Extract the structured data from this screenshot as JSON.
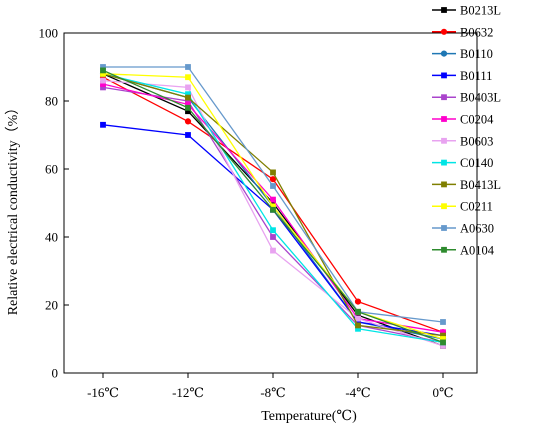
{
  "chart_data": {
    "type": "line",
    "xlabel": "Temperature(℃)",
    "ylabel": "Relative electrical conductivity（%）",
    "categories": [
      "-16℃",
      "-12℃",
      "-8℃",
      "-4℃",
      "0℃"
    ],
    "ylim": [
      0,
      100
    ],
    "yticks": [
      "0",
      "20",
      "40",
      "60",
      "80",
      "100"
    ],
    "grid": false,
    "legend_position": "right",
    "series": [
      {
        "name": "B0213L",
        "color": "#000000",
        "marker": "square",
        "values": [
          88,
          77,
          50,
          17,
          8
        ]
      },
      {
        "name": "B0632",
        "color": "#ff0000",
        "marker": "circle",
        "values": [
          87,
          74,
          57,
          21,
          12
        ]
      },
      {
        "name": "B0110",
        "color": "#1f77b4",
        "marker": "circle",
        "values": [
          88,
          81,
          49,
          15,
          10
        ]
      },
      {
        "name": "B0111",
        "color": "#0000ff",
        "marker": "square",
        "values": [
          73,
          70,
          48,
          15,
          11
        ]
      },
      {
        "name": "B0403L",
        "color": "#aa44cc",
        "marker": "square",
        "values": [
          84,
          80,
          40,
          14,
          9
        ]
      },
      {
        "name": "C0204",
        "color": "#ff00cc",
        "marker": "square",
        "values": [
          85,
          79,
          51,
          16,
          12
        ]
      },
      {
        "name": "B0603",
        "color": "#e8a3f0",
        "marker": "square",
        "values": [
          86,
          84,
          36,
          16,
          8
        ]
      },
      {
        "name": "C0140",
        "color": "#00e5e5",
        "marker": "square",
        "values": [
          88,
          82,
          42,
          13,
          9
        ]
      },
      {
        "name": "B0413L",
        "color": "#7f7f00",
        "marker": "square",
        "values": [
          88,
          81,
          59,
          14,
          11
        ]
      },
      {
        "name": "C0211",
        "color": "#ffff00",
        "marker": "square",
        "values": [
          88,
          87,
          49,
          18,
          10
        ]
      },
      {
        "name": "A0630",
        "color": "#6699cc",
        "marker": "square",
        "values": [
          90,
          90,
          55,
          18,
          15
        ]
      },
      {
        "name": "A0104",
        "color": "#2e8b2e",
        "marker": "square",
        "values": [
          89,
          78,
          48,
          18,
          9
        ]
      }
    ]
  }
}
